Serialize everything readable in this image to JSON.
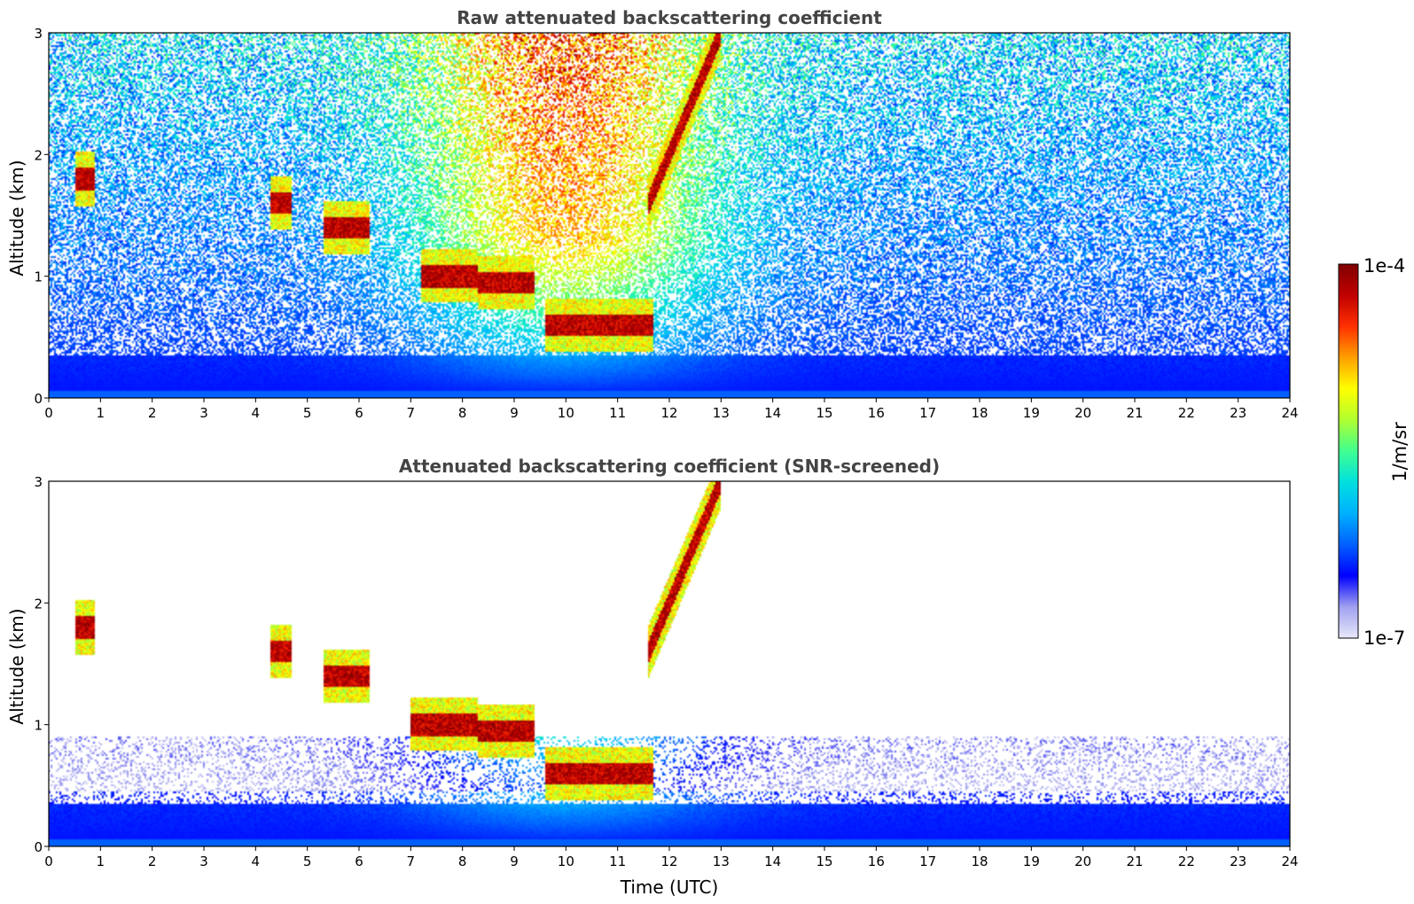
{
  "chart_data": [
    {
      "type": "heatmap",
      "title": "Raw attenuated backscattering coefficient",
      "xlabel": "",
      "ylabel": "Altitude (km)",
      "xlim": [
        0,
        24
      ],
      "ylim": [
        0,
        3
      ],
      "xticks": [
        "0",
        "1",
        "2",
        "3",
        "4",
        "5",
        "6",
        "7",
        "8",
        "9",
        "10",
        "11",
        "12",
        "13",
        "14",
        "15",
        "16",
        "17",
        "18",
        "19",
        "20",
        "21",
        "22",
        "23",
        "24"
      ],
      "yticks": [
        "0",
        "1",
        "2"
      ],
      "ytick_top": "3",
      "screened": false,
      "layers": [
        {
          "x_start": 0.5,
          "x_end": 0.9,
          "alt": 1.8
        },
        {
          "x_start": 4.3,
          "x_end": 4.7,
          "alt": 1.6
        },
        {
          "x_start": 5.3,
          "x_end": 6.2,
          "alt": 1.4
        },
        {
          "x_start": 7.2,
          "x_end": 8.3,
          "alt": 1.0
        },
        {
          "x_start": 8.3,
          "x_end": 9.4,
          "alt": 0.95
        },
        {
          "x_start": 9.6,
          "x_end": 11.7,
          "alt": 0.6
        },
        {
          "x_start": 11.6,
          "x_end": 13.0,
          "alt": 1.6,
          "alt_end": 3.0
        }
      ]
    },
    {
      "type": "heatmap",
      "title": "Attenuated backscattering coefficient (SNR-screened)",
      "xlabel": "Time (UTC)",
      "ylabel": "Altitude (km)",
      "xlim": [
        0,
        24
      ],
      "ylim": [
        0,
        3
      ],
      "xticks": [
        "0",
        "1",
        "2",
        "3",
        "4",
        "5",
        "6",
        "7",
        "8",
        "9",
        "10",
        "11",
        "12",
        "13",
        "14",
        "15",
        "16",
        "17",
        "18",
        "19",
        "20",
        "21",
        "22",
        "23",
        "24"
      ],
      "yticks": [
        "0",
        "1",
        "2"
      ],
      "ytick_top": "3",
      "screened": true,
      "layers": [
        {
          "x_start": 0.5,
          "x_end": 0.9,
          "alt": 1.8
        },
        {
          "x_start": 4.3,
          "x_end": 4.7,
          "alt": 1.6
        },
        {
          "x_start": 5.3,
          "x_end": 6.2,
          "alt": 1.4
        },
        {
          "x_start": 7.0,
          "x_end": 8.3,
          "alt": 1.0
        },
        {
          "x_start": 8.3,
          "x_end": 9.4,
          "alt": 0.95
        },
        {
          "x_start": 9.6,
          "x_end": 11.7,
          "alt": 0.6
        },
        {
          "x_start": 11.6,
          "x_end": 13.0,
          "alt": 1.6,
          "alt_end": 3.0
        }
      ]
    }
  ],
  "colorbar": {
    "label": "1/m/sr",
    "max_label": "1e-4",
    "min_label": "1e-7",
    "scale": "log",
    "range": [
      1e-07,
      0.0001
    ],
    "colormap": [
      "#e8e8fa",
      "#a0a0f0",
      "#0000ff",
      "#0060ff",
      "#00b0ff",
      "#00e0e0",
      "#40ff90",
      "#b0ff30",
      "#ffff00",
      "#ffa000",
      "#ff3000",
      "#c00000",
      "#800000"
    ]
  }
}
